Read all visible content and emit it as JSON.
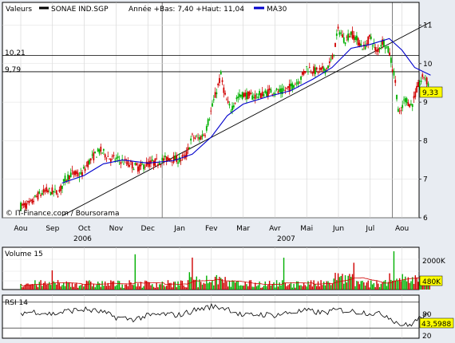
{
  "chart_data": [
    {
      "type": "candlestick",
      "legend": {
        "field": "Valeurs",
        "series_name": "SONAE IND.SGP",
        "range_text": "Année +Bas: 7,40 +Haut: 11,04",
        "ma_name": "MA30"
      },
      "watermark": "© IT-Finance.com / Boursorama",
      "y_ticks": [
        6,
        7,
        8,
        9,
        10,
        11
      ],
      "ylim": [
        6,
        11.3
      ],
      "x_month_labels": [
        "Aou",
        "Sep",
        "Oct",
        "Nov",
        "Dec",
        "Jan",
        "Fev",
        "Mar",
        "Avr",
        "Mai",
        "Jun",
        "Jul",
        "Aou"
      ],
      "year_labels": [
        {
          "label": "2006",
          "month_index": 2
        },
        {
          "label": "2007",
          "month_index": 9
        }
      ],
      "horizontal_levels": [
        {
          "label": "10,21",
          "value": 10.21
        },
        {
          "label": "9,79",
          "value": 9.79
        }
      ],
      "last_value_label": "9,33",
      "last_value": 9.33,
      "trendline": {
        "start": {
          "month": 1.3,
          "value": 6.05
        },
        "end": {
          "month": 12.9,
          "value": 11.08
        }
      },
      "price_path": [
        {
          "m": 0.0,
          "v": 6.3
        },
        {
          "m": 0.3,
          "v": 6.35
        },
        {
          "m": 0.5,
          "v": 6.55
        },
        {
          "m": 0.8,
          "v": 6.7
        },
        {
          "m": 1.2,
          "v": 6.65
        },
        {
          "m": 1.4,
          "v": 7.0
        },
        {
          "m": 1.6,
          "v": 7.15
        },
        {
          "m": 1.9,
          "v": 7.1
        },
        {
          "m": 2.1,
          "v": 7.4
        },
        {
          "m": 2.3,
          "v": 7.6
        },
        {
          "m": 2.5,
          "v": 7.75
        },
        {
          "m": 2.8,
          "v": 7.55
        },
        {
          "m": 3.1,
          "v": 7.5
        },
        {
          "m": 3.4,
          "v": 7.4
        },
        {
          "m": 3.7,
          "v": 7.3
        },
        {
          "m": 4.0,
          "v": 7.4
        },
        {
          "m": 4.3,
          "v": 7.45
        },
        {
          "m": 4.7,
          "v": 7.55
        },
        {
          "m": 5.0,
          "v": 7.5
        },
        {
          "m": 5.2,
          "v": 7.6
        },
        {
          "m": 5.4,
          "v": 8.1
        },
        {
          "m": 5.6,
          "v": 8.05
        },
        {
          "m": 5.8,
          "v": 8.2
        },
        {
          "m": 6.0,
          "v": 8.8
        },
        {
          "m": 6.2,
          "v": 9.4
        },
        {
          "m": 6.3,
          "v": 9.7
        },
        {
          "m": 6.45,
          "v": 9.1
        },
        {
          "m": 6.6,
          "v": 8.8
        },
        {
          "m": 6.8,
          "v": 9.1
        },
        {
          "m": 7.0,
          "v": 9.2
        },
        {
          "m": 7.3,
          "v": 9.15
        },
        {
          "m": 7.6,
          "v": 9.2
        },
        {
          "m": 7.9,
          "v": 9.3
        },
        {
          "m": 8.2,
          "v": 9.25
        },
        {
          "m": 8.5,
          "v": 9.4
        },
        {
          "m": 8.8,
          "v": 9.6
        },
        {
          "m": 9.0,
          "v": 9.9
        },
        {
          "m": 9.3,
          "v": 9.8
        },
        {
          "m": 9.6,
          "v": 9.85
        },
        {
          "m": 9.8,
          "v": 10.1
        },
        {
          "m": 10.0,
          "v": 10.9
        },
        {
          "m": 10.2,
          "v": 10.6
        },
        {
          "m": 10.4,
          "v": 10.8
        },
        {
          "m": 10.6,
          "v": 10.6
        },
        {
          "m": 10.8,
          "v": 10.4
        },
        {
          "m": 11.0,
          "v": 10.7
        },
        {
          "m": 11.2,
          "v": 10.3
        },
        {
          "m": 11.4,
          "v": 10.6
        },
        {
          "m": 11.6,
          "v": 10.3
        },
        {
          "m": 11.8,
          "v": 9.5
        },
        {
          "m": 11.9,
          "v": 8.6
        },
        {
          "m": 12.1,
          "v": 9.1
        },
        {
          "m": 12.3,
          "v": 8.9
        },
        {
          "m": 12.5,
          "v": 9.4
        },
        {
          "m": 12.7,
          "v": 9.7
        },
        {
          "m": 12.9,
          "v": 9.33
        }
      ],
      "ma_path": [
        {
          "m": 1.3,
          "v": 6.9
        },
        {
          "m": 2.0,
          "v": 7.1
        },
        {
          "m": 2.6,
          "v": 7.4
        },
        {
          "m": 3.2,
          "v": 7.5
        },
        {
          "m": 4.0,
          "v": 7.42
        },
        {
          "m": 4.8,
          "v": 7.48
        },
        {
          "m": 5.4,
          "v": 7.65
        },
        {
          "m": 6.0,
          "v": 8.1
        },
        {
          "m": 6.5,
          "v": 8.65
        },
        {
          "m": 7.0,
          "v": 8.95
        },
        {
          "m": 7.8,
          "v": 9.15
        },
        {
          "m": 8.5,
          "v": 9.3
        },
        {
          "m": 9.2,
          "v": 9.6
        },
        {
          "m": 9.8,
          "v": 9.9
        },
        {
          "m": 10.4,
          "v": 10.4
        },
        {
          "m": 11.0,
          "v": 10.5
        },
        {
          "m": 11.6,
          "v": 10.65
        },
        {
          "m": 12.0,
          "v": 10.35
        },
        {
          "m": 12.4,
          "v": 9.9
        },
        {
          "m": 12.9,
          "v": 9.7
        }
      ]
    },
    {
      "type": "bar",
      "title": "Volume 15",
      "y_tick_labels": [
        "2000K"
      ],
      "last_value_label": "480K"
    },
    {
      "type": "line",
      "title": "RSI 14",
      "y_ticks": [
        20,
        80
      ],
      "last_value_label": "43,5988",
      "path": [
        {
          "m": 0.0,
          "v": 55
        },
        {
          "m": 0.5,
          "v": 58
        },
        {
          "m": 1.0,
          "v": 52
        },
        {
          "m": 1.5,
          "v": 60
        },
        {
          "m": 2.0,
          "v": 63
        },
        {
          "m": 2.5,
          "v": 58
        },
        {
          "m": 3.0,
          "v": 45
        },
        {
          "m": 3.5,
          "v": 40
        },
        {
          "m": 4.0,
          "v": 48
        },
        {
          "m": 4.5,
          "v": 52
        },
        {
          "m": 5.0,
          "v": 50
        },
        {
          "m": 5.5,
          "v": 62
        },
        {
          "m": 6.0,
          "v": 70
        },
        {
          "m": 6.5,
          "v": 66
        },
        {
          "m": 7.0,
          "v": 48
        },
        {
          "m": 7.5,
          "v": 52
        },
        {
          "m": 8.0,
          "v": 50
        },
        {
          "m": 8.5,
          "v": 56
        },
        {
          "m": 9.0,
          "v": 60
        },
        {
          "m": 9.5,
          "v": 55
        },
        {
          "m": 10.0,
          "v": 62
        },
        {
          "m": 10.5,
          "v": 58
        },
        {
          "m": 11.0,
          "v": 55
        },
        {
          "m": 11.5,
          "v": 50
        },
        {
          "m": 11.9,
          "v": 30
        },
        {
          "m": 12.2,
          "v": 25
        },
        {
          "m": 12.5,
          "v": 40
        },
        {
          "m": 12.7,
          "v": 50
        },
        {
          "m": 12.9,
          "v": 43.6
        }
      ]
    }
  ]
}
